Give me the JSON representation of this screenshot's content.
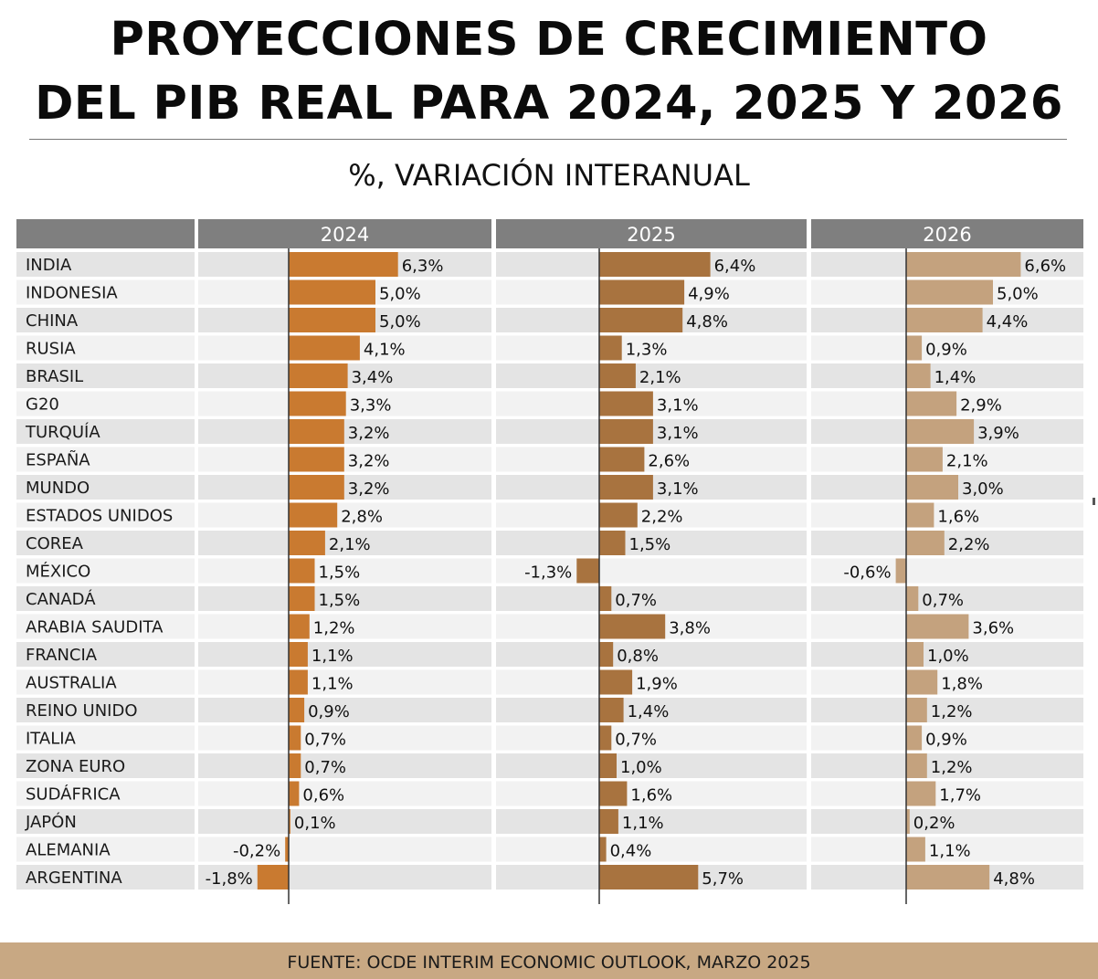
{
  "title_line1": "PROYECCIONES DE CRECIMIENTO",
  "title_line2": "DEL PIB REAL PARA 2024, 2025 Y 2026",
  "subtitle": "%, VARIACIÓN INTERANUAL",
  "source": "FUENTE: OCDE INTERIM ECONOMIC OUTLOOK, MARZO 2025",
  "colors": {
    "bar_2024": "#c97a30",
    "bar_2025": "#a8733f",
    "bar_2026": "#c4a27e",
    "header_bg": "#7f7f7f",
    "row_dark": "#e4e4e4",
    "row_light": "#f2f2f2",
    "footer_bg": "#c8a883"
  },
  "chart_data": {
    "type": "bar",
    "orientation": "horizontal",
    "categories": [
      "INDIA",
      "INDONESIA",
      "CHINA",
      "RUSIA",
      "BRASIL",
      "G20",
      "TURQUÍA",
      "ESPAÑA",
      "MUNDO",
      "ESTADOS UNIDOS",
      "COREA",
      "MÉXICO",
      "CANADÁ",
      "ARABIA SAUDITA",
      "FRANCIA",
      "AUSTRALIA",
      "REINO UNIDO",
      "ITALIA",
      "ZONA EURO",
      "SUDÁFRICA",
      "JAPÓN",
      "ALEMANIA",
      "ARGENTINA"
    ],
    "series": [
      {
        "name": "2024",
        "values": [
          6.3,
          5.0,
          5.0,
          4.1,
          3.4,
          3.3,
          3.2,
          3.2,
          3.2,
          2.8,
          2.1,
          1.5,
          1.5,
          1.2,
          1.1,
          1.1,
          0.9,
          0.7,
          0.7,
          0.6,
          0.1,
          -0.2,
          -1.8
        ],
        "labels": [
          "6,3%",
          "5,0%",
          "5,0%",
          "4,1%",
          "3,4%",
          "3,3%",
          "3,2%",
          "3,2%",
          "3,2%",
          "2,8%",
          "2,1%",
          "1,5%",
          "1,5%",
          "1,2%",
          "1,1%",
          "1,1%",
          "0,9%",
          "0,7%",
          "0,7%",
          "0,6%",
          "0,1%",
          "-0,2%",
          "-1,8%"
        ]
      },
      {
        "name": "2025",
        "values": [
          6.4,
          4.9,
          4.8,
          1.3,
          2.1,
          3.1,
          3.1,
          2.6,
          3.1,
          2.2,
          1.5,
          -1.3,
          0.7,
          3.8,
          0.8,
          1.9,
          1.4,
          0.7,
          1.0,
          1.6,
          1.1,
          0.4,
          5.7
        ],
        "labels": [
          "6,4%",
          "4,9%",
          "4,8%",
          "1,3%",
          "2,1%",
          "3,1%",
          "3,1%",
          "2,6%",
          "3,1%",
          "2,2%",
          "1,5%",
          "-1,3%",
          "0,7%",
          "3,8%",
          "0,8%",
          "1,9%",
          "1,4%",
          "0,7%",
          "1,0%",
          "1,6%",
          "1,1%",
          "0,4%",
          "5,7%"
        ]
      },
      {
        "name": "2026",
        "values": [
          6.6,
          5.0,
          4.4,
          0.9,
          1.4,
          2.9,
          3.9,
          2.1,
          3.0,
          1.6,
          2.2,
          -0.6,
          0.7,
          3.6,
          1.0,
          1.8,
          1.2,
          0.9,
          1.2,
          1.7,
          0.2,
          1.1,
          4.8
        ],
        "labels": [
          "6,6%",
          "5,0%",
          "4,4%",
          "0,9%",
          "1,4%",
          "2,9%",
          "3,9%",
          "2,1%",
          "3,0%",
          "1,6%",
          "2,2%",
          "-0,6%",
          "0,7%",
          "3,6%",
          "1,0%",
          "1,8%",
          "1,2%",
          "0,9%",
          "1,2%",
          "1,7%",
          "0,2%",
          "1,1%",
          "4,8%"
        ]
      }
    ]
  }
}
